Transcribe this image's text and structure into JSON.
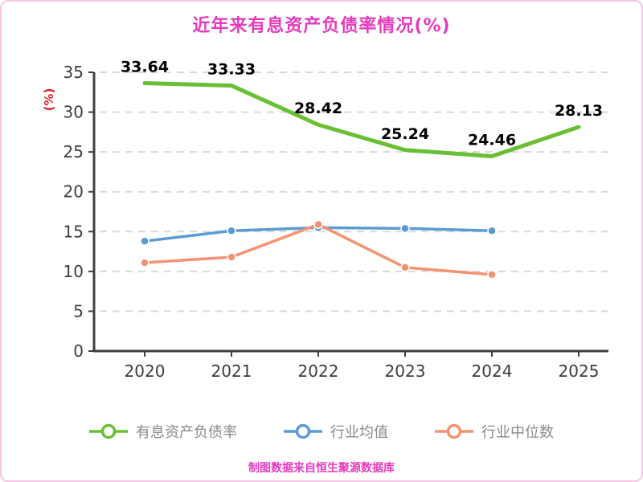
{
  "colors": {
    "title": "#e53bbd",
    "footer": "#e53bbd",
    "ylabel": "#e01f1f",
    "axis": "#3f3f3f",
    "grid": "#d9d9d9",
    "tick_label": "#3d3d3d",
    "data_label": "#000000",
    "legend_text": "#8a8a8a",
    "frame_border": "#f6c6e2"
  },
  "footer": {
    "text": "制图数据来自恒生聚源数据库"
  },
  "chart_data": {
    "type": "line",
    "title": "近年来有息资产负债率情况(%)",
    "xlabel": "",
    "ylabel": "(%)",
    "x": [
      "2020",
      "2021",
      "2022",
      "2023",
      "2024",
      "2025"
    ],
    "ylim": [
      0,
      35
    ],
    "yticks": [
      0,
      5,
      10,
      15,
      20,
      25,
      30,
      35
    ],
    "grid": true,
    "grid_style": "dashed",
    "legend_position": "bottom",
    "series": [
      {
        "name": "有息资产负债率",
        "color": "#6abf35",
        "values": [
          33.64,
          33.33,
          28.42,
          25.24,
          24.46,
          28.13
        ],
        "show_labels": true,
        "line_width": 5
      },
      {
        "name": "行业均值",
        "color": "#5b9bd5",
        "values": [
          13.8,
          15.1,
          15.5,
          15.4,
          15.1,
          null
        ],
        "show_labels": false,
        "line_width": 3.5
      },
      {
        "name": "行业中位数",
        "color": "#f49371",
        "values": [
          11.1,
          11.8,
          15.9,
          10.5,
          9.6,
          null
        ],
        "show_labels": false,
        "line_width": 3.5
      }
    ]
  }
}
